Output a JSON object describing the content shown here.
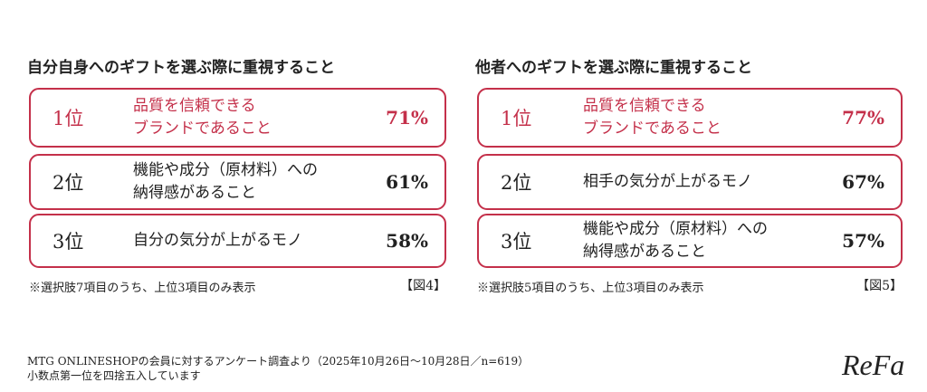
{
  "panels": [
    {
      "title": "自分自身へのギフトを選ぶ際に重視すること",
      "items": [
        {
          "rank": "1位",
          "label": [
            "品質を信頼できる",
            "ブランドであること"
          ],
          "percent": "71%"
        },
        {
          "rank": "2位",
          "label": [
            "機能や成分（原材料）への",
            "納得感があること"
          ],
          "percent": "61%"
        },
        {
          "rank": "3位",
          "label": [
            "自分の気分が上がるモノ"
          ],
          "percent": "58%"
        }
      ],
      "note": "※選択肢7項目のうち、上位3項目のみ表示",
      "figure": "【図4】"
    },
    {
      "title": "他者へのギフトを選ぶ際に重視すること",
      "items": [
        {
          "rank": "1位",
          "label": [
            "品質を信頼できる",
            "ブランドであること"
          ],
          "percent": "77%"
        },
        {
          "rank": "2位",
          "label": [
            "相手の気分が上がるモノ"
          ],
          "percent": "67%"
        },
        {
          "rank": "3位",
          "label": [
            "機能や成分（原材料）への",
            "納得感があること"
          ],
          "percent": "57%"
        }
      ],
      "note": "※選択肢5項目のうち、上位3項目のみ表示",
      "figure": "【図5】"
    }
  ],
  "footer": [
    "MTG ONLINESHOPの会員に対するアンケート調査より（2025年10月26日〜10月28日／n=619）",
    "小数点第一位を四捨五入しています"
  ],
  "logo": "ReFa"
}
